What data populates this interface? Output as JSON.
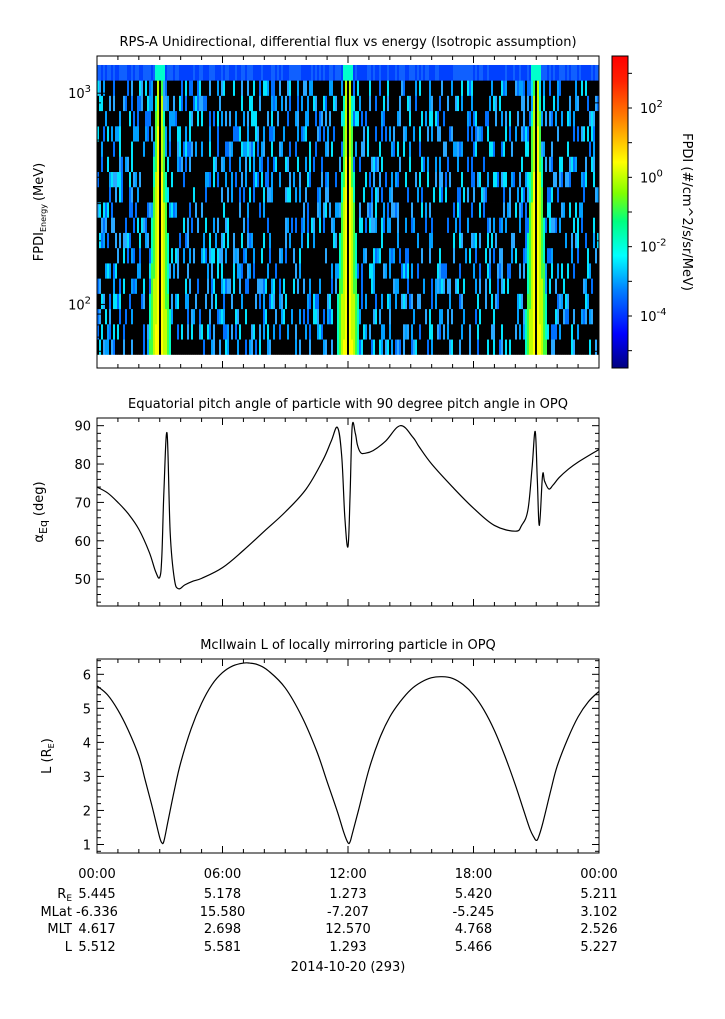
{
  "chart_data": [
    {
      "type": "heatmap",
      "title": "RPS-A Unidirectional, differential flux vs energy (Isotropic assumption)",
      "ylabel": "FPDI",
      "ylabel_sub": "Energy",
      "ylabel_unit": "(MeV)",
      "yscale": "log",
      "ylim": [
        50,
        1500
      ],
      "yticks": [
        {
          "v": 100,
          "base": "10",
          "exp": "2"
        },
        {
          "v": 1000,
          "base": "10",
          "exp": "3"
        }
      ],
      "colorbar": {
        "label": "FPDI (#/cm^2/s/sr/MeV)",
        "scale": "log",
        "range_log10": [
          -5.5,
          3.5
        ],
        "ticks": [
          {
            "v": 2,
            "base": "10",
            "exp": "2"
          },
          {
            "v": 0,
            "base": "10",
            "exp": "0"
          },
          {
            "v": -2,
            "base": "10",
            "exp": "-2"
          },
          {
            "v": -4,
            "base": "10",
            "exp": "-4"
          }
        ]
      },
      "perigee_hours": [
        3.0,
        12.0,
        21.0
      ],
      "colormap": [
        "#000080",
        "#0000ff",
        "#0080ff",
        "#00ffff",
        "#00ff80",
        "#80ff00",
        "#ffff00",
        "#ff8000",
        "#ff0000",
        "#800000"
      ]
    },
    {
      "type": "line",
      "title": "Equatorial pitch angle of particle with 90 degree pitch angle in OPQ",
      "ylabel": "α",
      "ylabel_sub": "Eq",
      "ylabel_unit": "(deg)",
      "ylim": [
        43,
        92
      ],
      "yticks": [
        50,
        60,
        70,
        80,
        90
      ],
      "x": [
        0,
        0.5,
        1,
        1.5,
        2,
        2.5,
        2.8,
        3.0,
        3.1,
        3.2,
        3.35,
        3.5,
        3.7,
        3.9,
        4.2,
        4.6,
        5,
        6,
        7,
        8,
        9,
        10,
        10.8,
        11.2,
        11.5,
        11.7,
        11.85,
        12.0,
        12.1,
        12.2,
        12.35,
        12.45,
        12.6,
        12.8,
        13.2,
        13.8,
        14.5,
        15.1,
        15.4,
        16,
        17,
        18,
        19,
        20,
        20.3,
        20.6,
        20.8,
        20.95,
        21.05,
        21.15,
        21.3,
        21.4,
        21.6,
        21.8,
        22.1,
        22.5,
        23,
        24
      ],
      "values": [
        74,
        72.5,
        70,
        67,
        63,
        57,
        52,
        50.5,
        56,
        73,
        88,
        62,
        50,
        47.5,
        48.5,
        49.5,
        50.2,
        53,
        57.5,
        62.5,
        67.5,
        73.5,
        81,
        86,
        89.5,
        82,
        66,
        58.5,
        72,
        89.8,
        88,
        85,
        83,
        82.8,
        83.5,
        86,
        90,
        87,
        84.5,
        80,
        74,
        68.5,
        64,
        62.5,
        64,
        68,
        79,
        88.5,
        76,
        64,
        77,
        75.5,
        73.5,
        74.5,
        76.5,
        78.5,
        80.5,
        83.8
      ]
    },
    {
      "type": "line",
      "title": "McIlwain L of locally mirroring particle in OPQ",
      "ylabel": "L (R",
      "ylabel_sub": "E",
      "ylabel_unit": ")",
      "ylim": [
        0.75,
        6.45
      ],
      "yticks": [
        1,
        2,
        3,
        4,
        5,
        6
      ],
      "x": [
        0,
        0.5,
        1,
        1.5,
        2,
        2.3,
        2.6,
        2.8,
        3.0,
        3.1,
        3.2,
        3.4,
        3.7,
        4.0,
        4.5,
        5,
        5.5,
        6,
        6.5,
        7,
        7.3,
        7.7,
        8.2,
        9,
        9.8,
        10.5,
        11,
        11.5,
        11.8,
        12.0,
        12.1,
        12.2,
        12.5,
        13,
        13.5,
        14,
        14.5,
        15,
        15.5,
        16,
        16.5,
        17,
        17.5,
        18,
        18.5,
        19,
        19.5,
        20,
        20.4,
        20.7,
        20.9,
        21.0,
        21.1,
        21.3,
        21.7,
        22,
        22.5,
        23,
        23.5,
        24
      ],
      "values": [
        5.66,
        5.4,
        4.95,
        4.35,
        3.6,
        2.9,
        2.2,
        1.7,
        1.2,
        1.05,
        1.1,
        1.7,
        2.6,
        3.4,
        4.4,
        5.15,
        5.7,
        6.05,
        6.25,
        6.33,
        6.33,
        6.28,
        6.1,
        5.6,
        4.75,
        3.75,
        2.85,
        1.95,
        1.35,
        1.05,
        1.08,
        1.3,
        2.0,
        3.2,
        4.1,
        4.75,
        5.2,
        5.55,
        5.77,
        5.9,
        5.93,
        5.88,
        5.7,
        5.4,
        4.95,
        4.35,
        3.6,
        2.75,
        2.0,
        1.45,
        1.2,
        1.12,
        1.2,
        1.6,
        2.6,
        3.3,
        4.1,
        4.75,
        5.2,
        5.5
      ]
    }
  ],
  "axis": {
    "xrange_hours": [
      0,
      24
    ],
    "tick_labels": [
      "00:00",
      "06:00",
      "12:00",
      "18:00",
      "00:00"
    ],
    "rows": [
      {
        "label": "R",
        "label_sub": "E",
        "values": [
          "5.445",
          "5.178",
          "1.273",
          "5.420",
          "5.211"
        ]
      },
      {
        "label": "MLat",
        "label_sub": "",
        "values": [
          "-6.336",
          "15.580",
          "-7.207",
          "-5.245",
          "3.102"
        ]
      },
      {
        "label": "MLT",
        "label_sub": "",
        "values": [
          "4.617",
          "2.698",
          "12.570",
          "4.768",
          "2.526"
        ]
      },
      {
        "label": "L",
        "label_sub": "",
        "values": [
          "5.512",
          "5.581",
          "1.293",
          "5.466",
          "5.227"
        ]
      }
    ],
    "date_label": "2014-10-20 (293)"
  }
}
